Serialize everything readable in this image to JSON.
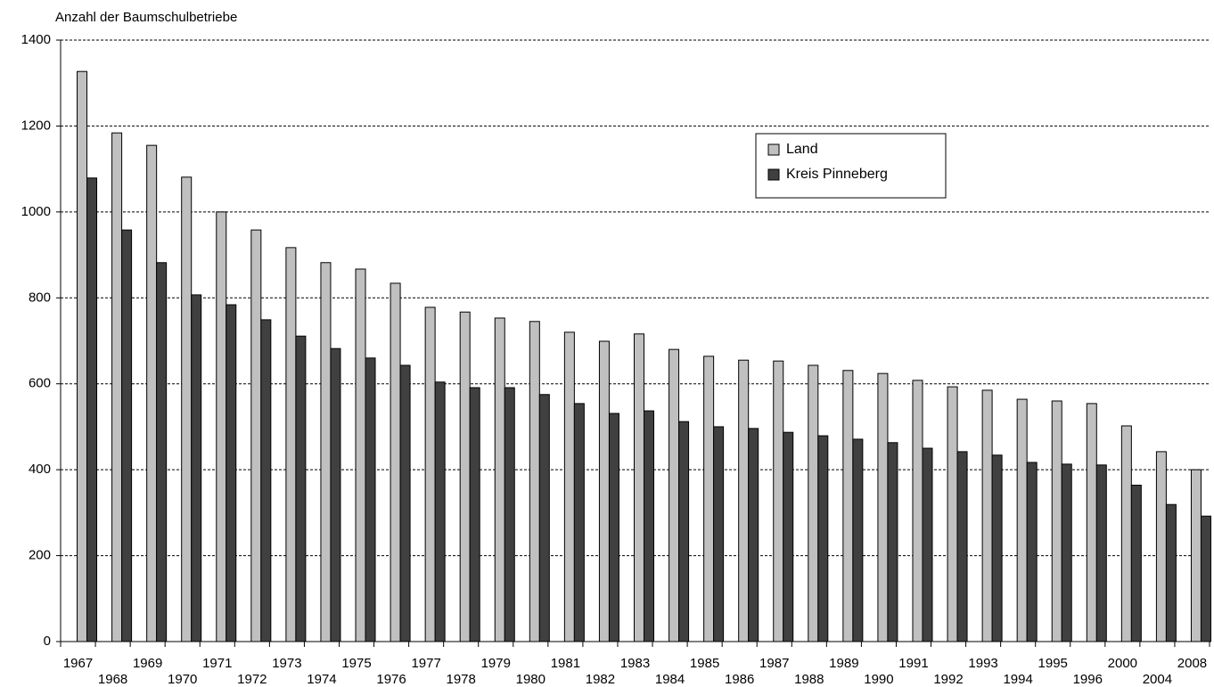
{
  "chart_data": {
    "type": "bar",
    "y_axis_label": "Anzahl der Baumschulbetriebe",
    "categories": [
      "1967",
      "1968",
      "1969",
      "1970",
      "1971",
      "1972",
      "1973",
      "1974",
      "1975",
      "1976",
      "1977",
      "1978",
      "1979",
      "1980",
      "1981",
      "1982",
      "1983",
      "1984",
      "1985",
      "1986",
      "1987",
      "1988",
      "1989",
      "1990",
      "1991",
      "1992",
      "1993",
      "1994",
      "1995",
      "1996",
      "2000",
      "2004",
      "2008"
    ],
    "series": [
      {
        "name": "Land",
        "color": "#c0c0c0",
        "values": [
          1327,
          1184,
          1155,
          1081,
          1000,
          958,
          917,
          882,
          867,
          834,
          778,
          767,
          753,
          745,
          720,
          699,
          716,
          680,
          664,
          655,
          653,
          643,
          631,
          624,
          608,
          593,
          585,
          564,
          560,
          554,
          502,
          442,
          400
        ]
      },
      {
        "name": "Kreis Pinneberg",
        "color": "#404040",
        "values": [
          1079,
          958,
          882,
          807,
          784,
          749,
          711,
          682,
          660,
          643,
          604,
          591,
          591,
          575,
          554,
          531,
          537,
          512,
          500,
          496,
          487,
          479,
          471,
          463,
          450,
          442,
          434,
          417,
          413,
          411,
          364,
          319,
          292
        ]
      }
    ],
    "ylim": [
      0,
      1400
    ],
    "yticks": [
      0,
      200,
      400,
      600,
      800,
      1000,
      1200,
      1400
    ],
    "grid": true
  }
}
